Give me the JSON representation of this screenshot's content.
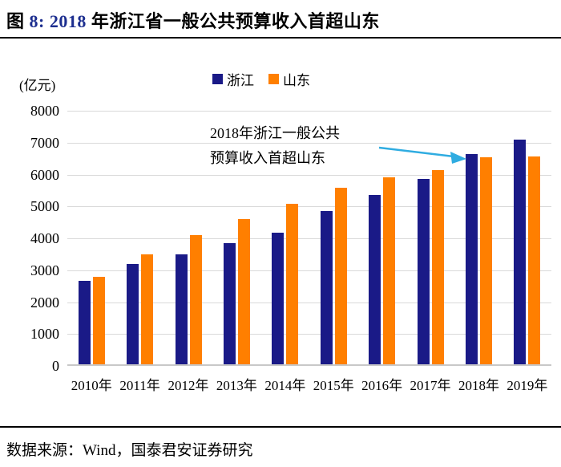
{
  "title": {
    "prefix": "图 ",
    "number_part": "8:  2018",
    "suffix": " 年浙江省一般公共预算收入首超山东"
  },
  "unit_label": "(亿元)",
  "annotation": {
    "line1": "2018年浙江一般公共",
    "line2": "预算收入首超山东"
  },
  "footer": "数据来源：Wind，国泰君安证券研究",
  "colors": {
    "zhejiang_navy": "#1a1a87",
    "shandong_orange": "#ff7f00",
    "title_number_blue": "#1c2e8f",
    "annotation_arrow_blue": "#2face1",
    "gridline_gray": "#d9d9d9",
    "axis_gray": "#c8c8c8"
  },
  "chart_data": {
    "type": "bar",
    "title": "2018 年浙江省一般公共预算收入首超山东",
    "categories": [
      "2010年",
      "2011年",
      "2012年",
      "2013年",
      "2014年",
      "2015年",
      "2016年",
      "2017年",
      "2018年",
      "2019年"
    ],
    "series": [
      {
        "name": "浙江",
        "color": "#1a1a87",
        "values": [
          2608,
          3151,
          3441,
          3797,
          4121,
          4810,
          5302,
          5803,
          6598,
          7048
        ]
      },
      {
        "name": "山东",
        "color": "#ff7f00",
        "values": [
          2749,
          3456,
          4059,
          4560,
          5027,
          5529,
          5860,
          6099,
          6485,
          6527
        ]
      }
    ],
    "xlabel": "",
    "ylabel": "(亿元)",
    "ylim": [
      0,
      8000
    ],
    "ytick_interval": 1000,
    "grid": true,
    "legend_position": "top-center",
    "annotation_text": "2018年浙江一般公共预算收入首超山东",
    "annotation_arrow_target": "2018年 浙江 bar"
  }
}
